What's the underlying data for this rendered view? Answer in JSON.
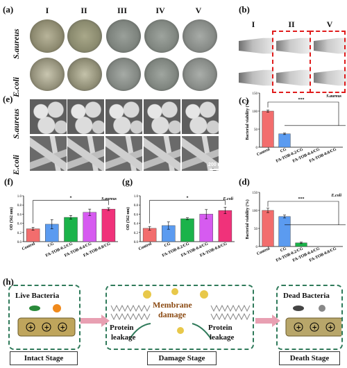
{
  "panels": {
    "a": "(a)",
    "b": "(b)",
    "c": "(c)",
    "d": "(d)",
    "e": "(e)",
    "f": "(f)",
    "g": "(g)",
    "h": "(h)"
  },
  "groups": [
    "I",
    "II",
    "III",
    "IV",
    "V"
  ],
  "b_groups": [
    "I",
    "II",
    "V"
  ],
  "row_labels": {
    "s_aureus": "S.aureus",
    "e_coli": "E.coli"
  },
  "scale_bar": "200 nm",
  "categories": [
    "Control",
    "CG",
    "FA-TOB-0.2/CG",
    "FA-TOB-0.4/CG",
    "FA-TOB-0.8/CG"
  ],
  "colors": [
    "#f26d6d",
    "#5b9bf0",
    "#1bb34a",
    "#d65bf0",
    "#f0327a"
  ],
  "chart_data": [
    {
      "id": "c",
      "type": "bar",
      "organism": "S.aureus",
      "ylabel": "Bacterial viability (%)",
      "ylim": [
        0,
        150
      ],
      "ticks": [
        0,
        50,
        100,
        150
      ],
      "values": [
        100,
        37,
        0,
        0,
        0
      ],
      "errors": [
        3,
        2,
        0,
        0,
        0
      ],
      "sig": "***"
    },
    {
      "id": "d",
      "type": "bar",
      "organism": "E.coli",
      "ylabel": "Bacterial viability (%)",
      "ylim": [
        0,
        150
      ],
      "ticks": [
        0,
        50,
        100,
        150
      ],
      "values": [
        100,
        83,
        10,
        0,
        0
      ],
      "errors": [
        6,
        4,
        2,
        0,
        0
      ],
      "sig": "***"
    },
    {
      "id": "f",
      "type": "bar",
      "organism": "S.aureus",
      "ylabel": "OD (562 nm)",
      "ylim": [
        0,
        1.0
      ],
      "ticks": [
        0.0,
        0.2,
        0.4,
        0.6,
        0.8,
        1.0
      ],
      "values": [
        0.28,
        0.38,
        0.53,
        0.64,
        0.71
      ],
      "errors": [
        0.03,
        0.1,
        0.04,
        0.07,
        0.03
      ],
      "sig": "*"
    },
    {
      "id": "g",
      "type": "bar",
      "organism": "E.coli",
      "ylabel": "OD (562 nm)",
      "ylim": [
        0,
        1.0
      ],
      "ticks": [
        0.0,
        0.2,
        0.4,
        0.6,
        0.8,
        1.0
      ],
      "values": [
        0.29,
        0.35,
        0.5,
        0.6,
        0.68
      ],
      "errors": [
        0.04,
        0.08,
        0.02,
        0.1,
        0.07
      ],
      "sig": "*"
    }
  ],
  "h": {
    "live": "Live Bacteria",
    "dead": "Dead Bacteria",
    "membrane": "Membrane",
    "damage": "damage",
    "protein1": "Protein",
    "leakage1": "leakage",
    "protein2": "Protein",
    "leakage2": "leakage",
    "stage1": "Intact Stage",
    "stage2": "Damage Stage",
    "stage3": "Death Stage"
  }
}
